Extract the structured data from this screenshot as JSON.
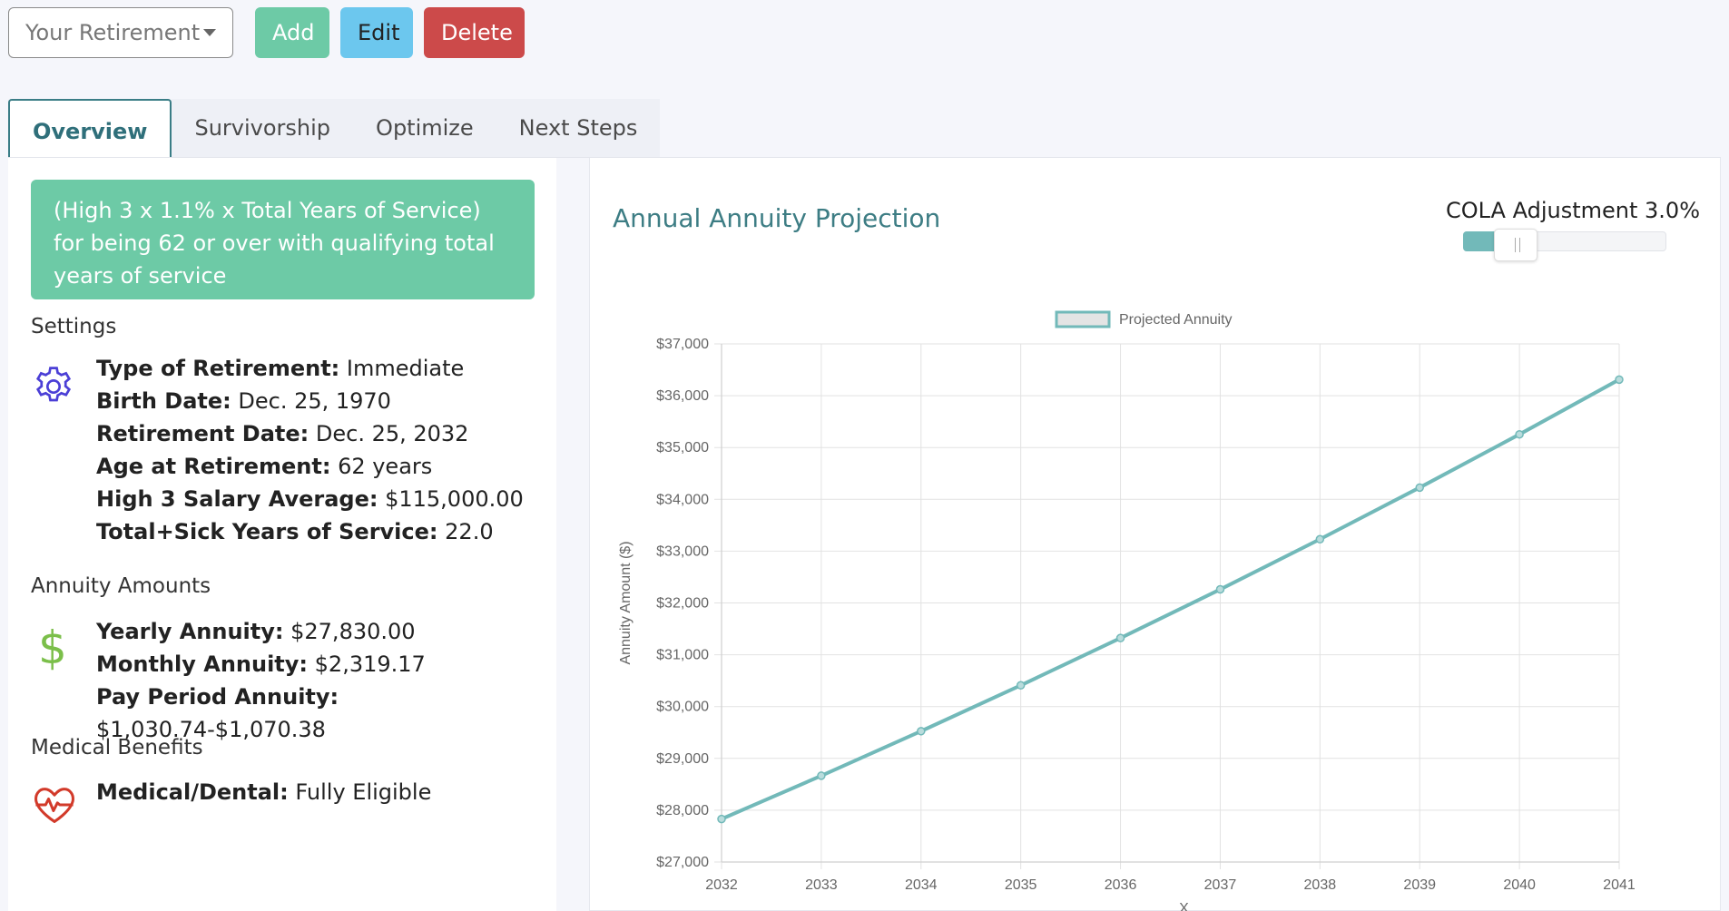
{
  "toolbar": {
    "select_value": "Your Retirement",
    "add_label": "Add",
    "edit_label": "Edit",
    "delete_label": "Delete"
  },
  "tabs": [
    {
      "label": "Overview",
      "active": true
    },
    {
      "label": "Survivorship",
      "active": false
    },
    {
      "label": "Optimize",
      "active": false
    },
    {
      "label": "Next Steps",
      "active": false
    }
  ],
  "formula": "(High 3 x 1.1% x Total Years of Service) for being 62 or over with qualifying total years of service",
  "settings": {
    "title": "Settings",
    "rows": [
      {
        "label": "Type of Retirement:",
        "value": "Immediate"
      },
      {
        "label": "Birth Date:",
        "value": "Dec. 25, 1970"
      },
      {
        "label": "Retirement Date:",
        "value": "Dec. 25, 2032"
      },
      {
        "label": "Age at Retirement:",
        "value": "62 years"
      },
      {
        "label": "High 3 Salary Average:",
        "value": "$115,000.00"
      },
      {
        "label": "Total+Sick Years of Service:",
        "value": "22.0"
      }
    ]
  },
  "annuity": {
    "title": "Annuity Amounts",
    "rows": [
      {
        "label": "Yearly Annuity:",
        "value": "$27,830.00"
      },
      {
        "label": "Monthly Annuity:",
        "value": "$2,319.17"
      },
      {
        "label": "Pay Period Annuity:",
        "value": "$1,030.74-$1,070.38"
      }
    ]
  },
  "medical": {
    "title": "Medical Benefits",
    "rows": [
      {
        "label": "Medical/Dental:",
        "value": "Fully Eligible"
      }
    ]
  },
  "chart_panel": {
    "title": "Annual Annuity Projection",
    "cola_label": "COLA Adjustment 3.0%",
    "cola_slider_fraction": 0.15
  },
  "colors": {
    "accent_green": "#6dcaa6",
    "accent_blue": "#6cc7ee",
    "danger_red": "#cc4a4a",
    "teal": "#3d7d84",
    "line": "#72b9b9"
  },
  "chart_data": {
    "type": "line",
    "title": "",
    "xlabel": "X",
    "ylabel": "Annuity Amount ($)",
    "legend": "top-center",
    "grid": true,
    "x": [
      2032,
      2033,
      2034,
      2035,
      2036,
      2037,
      2038,
      2039,
      2040,
      2041
    ],
    "series": [
      {
        "name": "Projected Annuity",
        "values": [
          27830,
          28665,
          29525,
          30410,
          31323,
          32262,
          33230,
          34227,
          35254,
          36311
        ]
      }
    ],
    "ylim": [
      27000,
      37000
    ],
    "yticks": [
      "$27,000",
      "$28,000",
      "$29,000",
      "$30,000",
      "$31,000",
      "$32,000",
      "$33,000",
      "$34,000",
      "$35,000",
      "$36,000",
      "$37,000"
    ]
  }
}
